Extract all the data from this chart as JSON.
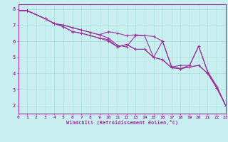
{
  "xlabel": "Windchill (Refroidissement éolien,°C)",
  "bg_color": "#c8eef0",
  "line_color": "#993399",
  "grid_color": "#aadddd",
  "axis_color": "#993399",
  "xlim": [
    0,
    23
  ],
  "ylim": [
    1.5,
    8.3
  ],
  "xticks": [
    0,
    1,
    2,
    3,
    4,
    5,
    6,
    7,
    8,
    9,
    10,
    11,
    12,
    13,
    14,
    15,
    16,
    17,
    18,
    19,
    20,
    21,
    22,
    23
  ],
  "yticks": [
    2,
    3,
    4,
    5,
    6,
    7,
    8
  ],
  "lines": [
    [
      [
        0,
        7.9
      ],
      [
        1,
        7.9
      ],
      [
        3,
        7.4
      ],
      [
        4,
        7.1
      ],
      [
        5,
        7.0
      ],
      [
        6,
        6.85
      ],
      [
        7,
        6.7
      ],
      [
        8,
        6.55
      ],
      [
        9,
        6.4
      ],
      [
        10,
        6.2
      ],
      [
        11,
        5.75
      ],
      [
        12,
        5.65
      ],
      [
        13,
        6.35
      ],
      [
        14,
        6.35
      ],
      [
        15,
        5.0
      ],
      [
        16,
        6.0
      ],
      [
        17,
        4.4
      ],
      [
        18,
        4.3
      ],
      [
        19,
        4.5
      ],
      [
        20,
        5.7
      ],
      [
        21,
        4.1
      ],
      [
        22,
        3.2
      ],
      [
        23,
        2.0
      ]
    ],
    [
      [
        0,
        7.9
      ],
      [
        1,
        7.9
      ],
      [
        3,
        7.4
      ],
      [
        4,
        7.1
      ],
      [
        5,
        7.0
      ],
      [
        6,
        6.85
      ],
      [
        7,
        6.7
      ],
      [
        8,
        6.55
      ],
      [
        9,
        6.4
      ],
      [
        10,
        6.6
      ],
      [
        11,
        6.5
      ],
      [
        12,
        6.35
      ],
      [
        13,
        6.4
      ],
      [
        14,
        6.35
      ],
      [
        15,
        6.3
      ],
      [
        16,
        6.0
      ],
      [
        17,
        4.4
      ],
      [
        18,
        4.5
      ],
      [
        19,
        4.5
      ],
      [
        20,
        5.7
      ],
      [
        21,
        4.1
      ],
      [
        22,
        3.2
      ],
      [
        23,
        2.0
      ]
    ],
    [
      [
        0,
        7.9
      ],
      [
        1,
        7.9
      ],
      [
        3,
        7.4
      ],
      [
        4,
        7.1
      ],
      [
        5,
        6.9
      ],
      [
        6,
        6.6
      ],
      [
        7,
        6.5
      ],
      [
        8,
        6.35
      ],
      [
        9,
        6.2
      ],
      [
        10,
        6.1
      ],
      [
        11,
        5.65
      ],
      [
        12,
        5.8
      ],
      [
        13,
        5.5
      ],
      [
        14,
        5.5
      ],
      [
        15,
        5.0
      ],
      [
        16,
        4.85
      ],
      [
        17,
        4.35
      ],
      [
        18,
        4.3
      ],
      [
        19,
        4.4
      ],
      [
        20,
        4.5
      ],
      [
        21,
        4.0
      ],
      [
        22,
        3.1
      ],
      [
        23,
        2.0
      ]
    ],
    [
      [
        0,
        7.9
      ],
      [
        1,
        7.9
      ],
      [
        3,
        7.4
      ],
      [
        4,
        7.1
      ],
      [
        5,
        6.9
      ],
      [
        6,
        6.6
      ],
      [
        7,
        6.5
      ],
      [
        8,
        6.35
      ],
      [
        9,
        6.2
      ],
      [
        10,
        6.0
      ],
      [
        11,
        5.65
      ],
      [
        12,
        5.8
      ],
      [
        13,
        5.5
      ],
      [
        14,
        5.5
      ],
      [
        15,
        5.0
      ],
      [
        16,
        4.85
      ],
      [
        17,
        4.35
      ],
      [
        18,
        4.3
      ],
      [
        19,
        4.4
      ],
      [
        20,
        4.5
      ],
      [
        21,
        4.0
      ],
      [
        22,
        3.1
      ],
      [
        23,
        2.0
      ]
    ]
  ],
  "figsize": [
    3.2,
    2.0
  ],
  "dpi": 100,
  "xlabel_fontsize": 5,
  "tick_fontsize": 4.5,
  "linewidth": 0.8,
  "markersize": 2.5
}
